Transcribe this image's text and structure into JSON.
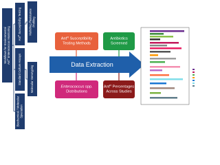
{
  "workflow": {
    "boxes": [
      {
        "lines": [
          [
            {
              "text": "Workflows for Environmental"
            }
          ],
          [
            {
              "text": "Ant"
            },
            {
              "sup": "R"
            },
            {
              "text": " "
            },
            {
              "em": "Enterococcus"
            },
            {
              "text": " Monitoring"
            }
          ]
        ]
      },
      {
        "lines": [
          [
            {
              "text": "Ant"
            },
            {
              "sup": "R"
            },
            {
              "text": " Susceptibility Testing"
            }
          ]
        ]
      },
      {
        "lines": [
          [
            {
              "text": "Standard Culture Assays"
            }
          ]
        ]
      },
      {
        "lines": [
          [
            {
              "text": "Biochemical / Molecular"
            }
          ],
          [
            {
              "text": "Speciation"
            }
          ]
        ]
      },
      {
        "lines": [
          [
            {
              "text": "Multidrug Resistance"
            }
          ],
          [
            {
              "text": "Profiling"
            }
          ]
        ]
      },
      {
        "lines": [
          [
            {
              "text": "Molecular Genotyping"
            }
          ]
        ]
      }
    ]
  },
  "extraction": {
    "label": "Data Extraction",
    "boxes": [
      {
        "lines": [
          [
            {
              "text": "Ant"
            },
            {
              "sup": "R"
            },
            {
              "text": " Susceptibility"
            }
          ],
          [
            {
              "text": "Testing Methods"
            }
          ]
        ]
      },
      {
        "lines": [
          [
            {
              "text": "Antibiotics"
            }
          ],
          [
            {
              "text": "Screened"
            }
          ]
        ]
      },
      {
        "lines": [
          [
            {
              "em": "Enterococcus"
            },
            {
              "text": " spp."
            }
          ],
          [
            {
              "text": "Distributions"
            }
          ]
        ]
      },
      {
        "lines": [
          [
            {
              "text": "Ant"
            },
            {
              "sup": "R"
            },
            {
              "text": " Percentages"
            }
          ],
          [
            {
              "text": "Across Studies"
            }
          ]
        ]
      }
    ]
  }
}
